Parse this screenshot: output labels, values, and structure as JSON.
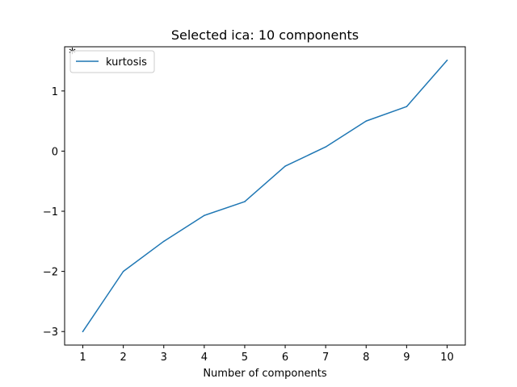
{
  "chart_data": {
    "type": "line",
    "title": "Selected ica: 10 components",
    "xlabel": "Number of components",
    "ylabel": "",
    "x": [
      1,
      2,
      3,
      4,
      5,
      6,
      7,
      8,
      9,
      10
    ],
    "series": [
      {
        "name": "kurtosis",
        "color": "#1f77b4",
        "values": [
          -3.0,
          -2.0,
          -1.5,
          -1.07,
          -0.84,
          -0.25,
          0.07,
          0.5,
          0.74,
          1.51
        ]
      }
    ],
    "xticks": [
      "1",
      "2",
      "3",
      "4",
      "5",
      "6",
      "7",
      "8",
      "9",
      "10"
    ],
    "yticks": [
      "−3",
      "−2",
      "−1",
      "0",
      "1"
    ],
    "ytick_values": [
      -3,
      -2,
      -1,
      0,
      1
    ],
    "xlim": [
      0.55,
      10.45
    ],
    "ylim": [
      -3.225,
      1.735
    ],
    "annotation": "*",
    "legend_position": "upper-left",
    "grid": false
  }
}
